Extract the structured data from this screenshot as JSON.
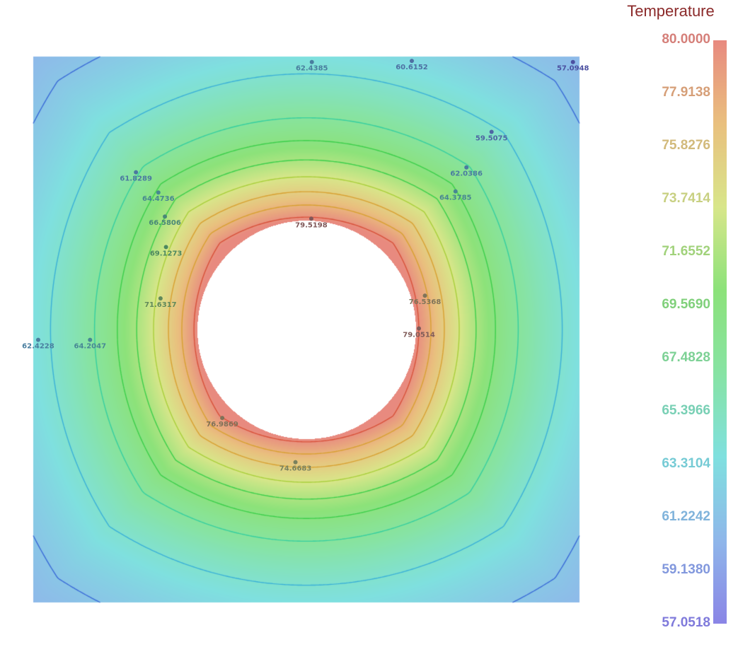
{
  "chart_data": {
    "type": "heatmap",
    "subtype": "contour-field",
    "colorbar": {
      "title": "Temperature",
      "min": 57.0518,
      "max": 80.0,
      "ticks": [
        "80.0000",
        "77.9138",
        "75.8276",
        "73.7414",
        "71.6552",
        "69.5690",
        "67.4828",
        "65.3966",
        "63.3104",
        "61.2242",
        "59.1380",
        "57.0518"
      ],
      "tick_values": [
        80.0,
        77.9138,
        75.8276,
        73.7414,
        71.6552,
        69.569,
        67.4828,
        65.3966,
        63.3104,
        61.2242,
        59.138,
        57.0518
      ],
      "colorscale": [
        "#8a85e6",
        "#8fb7ea",
        "#7fe0df",
        "#87e3a4",
        "#8ce27a",
        "#d8e68a",
        "#e9c07e",
        "#e88a7f"
      ]
    },
    "domain": {
      "x": [
        0,
        1
      ],
      "y": [
        0,
        1
      ]
    },
    "hole": {
      "center": [
        0.5,
        0.5
      ],
      "radius": 0.2
    },
    "contour_levels": [
      59.5,
      61.5,
      64.5,
      67.5,
      69.5,
      71.5,
      73.5,
      75.5,
      77.5,
      79.5
    ],
    "points": [
      {
        "x": 0.51,
        "y": 0.99,
        "value": 62.4385,
        "label": "62.4385"
      },
      {
        "x": 0.693,
        "y": 0.992,
        "value": 60.6152,
        "label": "60.6152"
      },
      {
        "x": 0.988,
        "y": 0.99,
        "value": 57.0948,
        "label": "57.0948"
      },
      {
        "x": 0.839,
        "y": 0.862,
        "value": 59.5075,
        "label": "59.5075"
      },
      {
        "x": 0.188,
        "y": 0.788,
        "value": 61.8289,
        "label": "61.8289"
      },
      {
        "x": 0.793,
        "y": 0.797,
        "value": 62.0386,
        "label": "62.0386"
      },
      {
        "x": 0.229,
        "y": 0.751,
        "value": 64.4736,
        "label": "64.4736"
      },
      {
        "x": 0.773,
        "y": 0.753,
        "value": 64.3785,
        "label": "64.3785"
      },
      {
        "x": 0.241,
        "y": 0.707,
        "value": 66.5806,
        "label": "66.5806"
      },
      {
        "x": 0.509,
        "y": 0.703,
        "value": 79.5198,
        "label": "79.5198"
      },
      {
        "x": 0.243,
        "y": 0.651,
        "value": 69.1273,
        "label": "69.1273"
      },
      {
        "x": 0.233,
        "y": 0.557,
        "value": 71.6317,
        "label": "71.6317"
      },
      {
        "x": 0.717,
        "y": 0.562,
        "value": 76.5368,
        "label": "76.5368"
      },
      {
        "x": 0.706,
        "y": 0.502,
        "value": 79.0514,
        "label": "79.0514"
      },
      {
        "x": 0.009,
        "y": 0.481,
        "value": 62.4228,
        "label": "62.4228"
      },
      {
        "x": 0.104,
        "y": 0.481,
        "value": 64.2047,
        "label": "64.2047"
      },
      {
        "x": 0.346,
        "y": 0.338,
        "value": 76.9869,
        "label": "76.9869"
      },
      {
        "x": 0.48,
        "y": 0.257,
        "value": 74.6683,
        "label": "74.6683"
      }
    ]
  }
}
